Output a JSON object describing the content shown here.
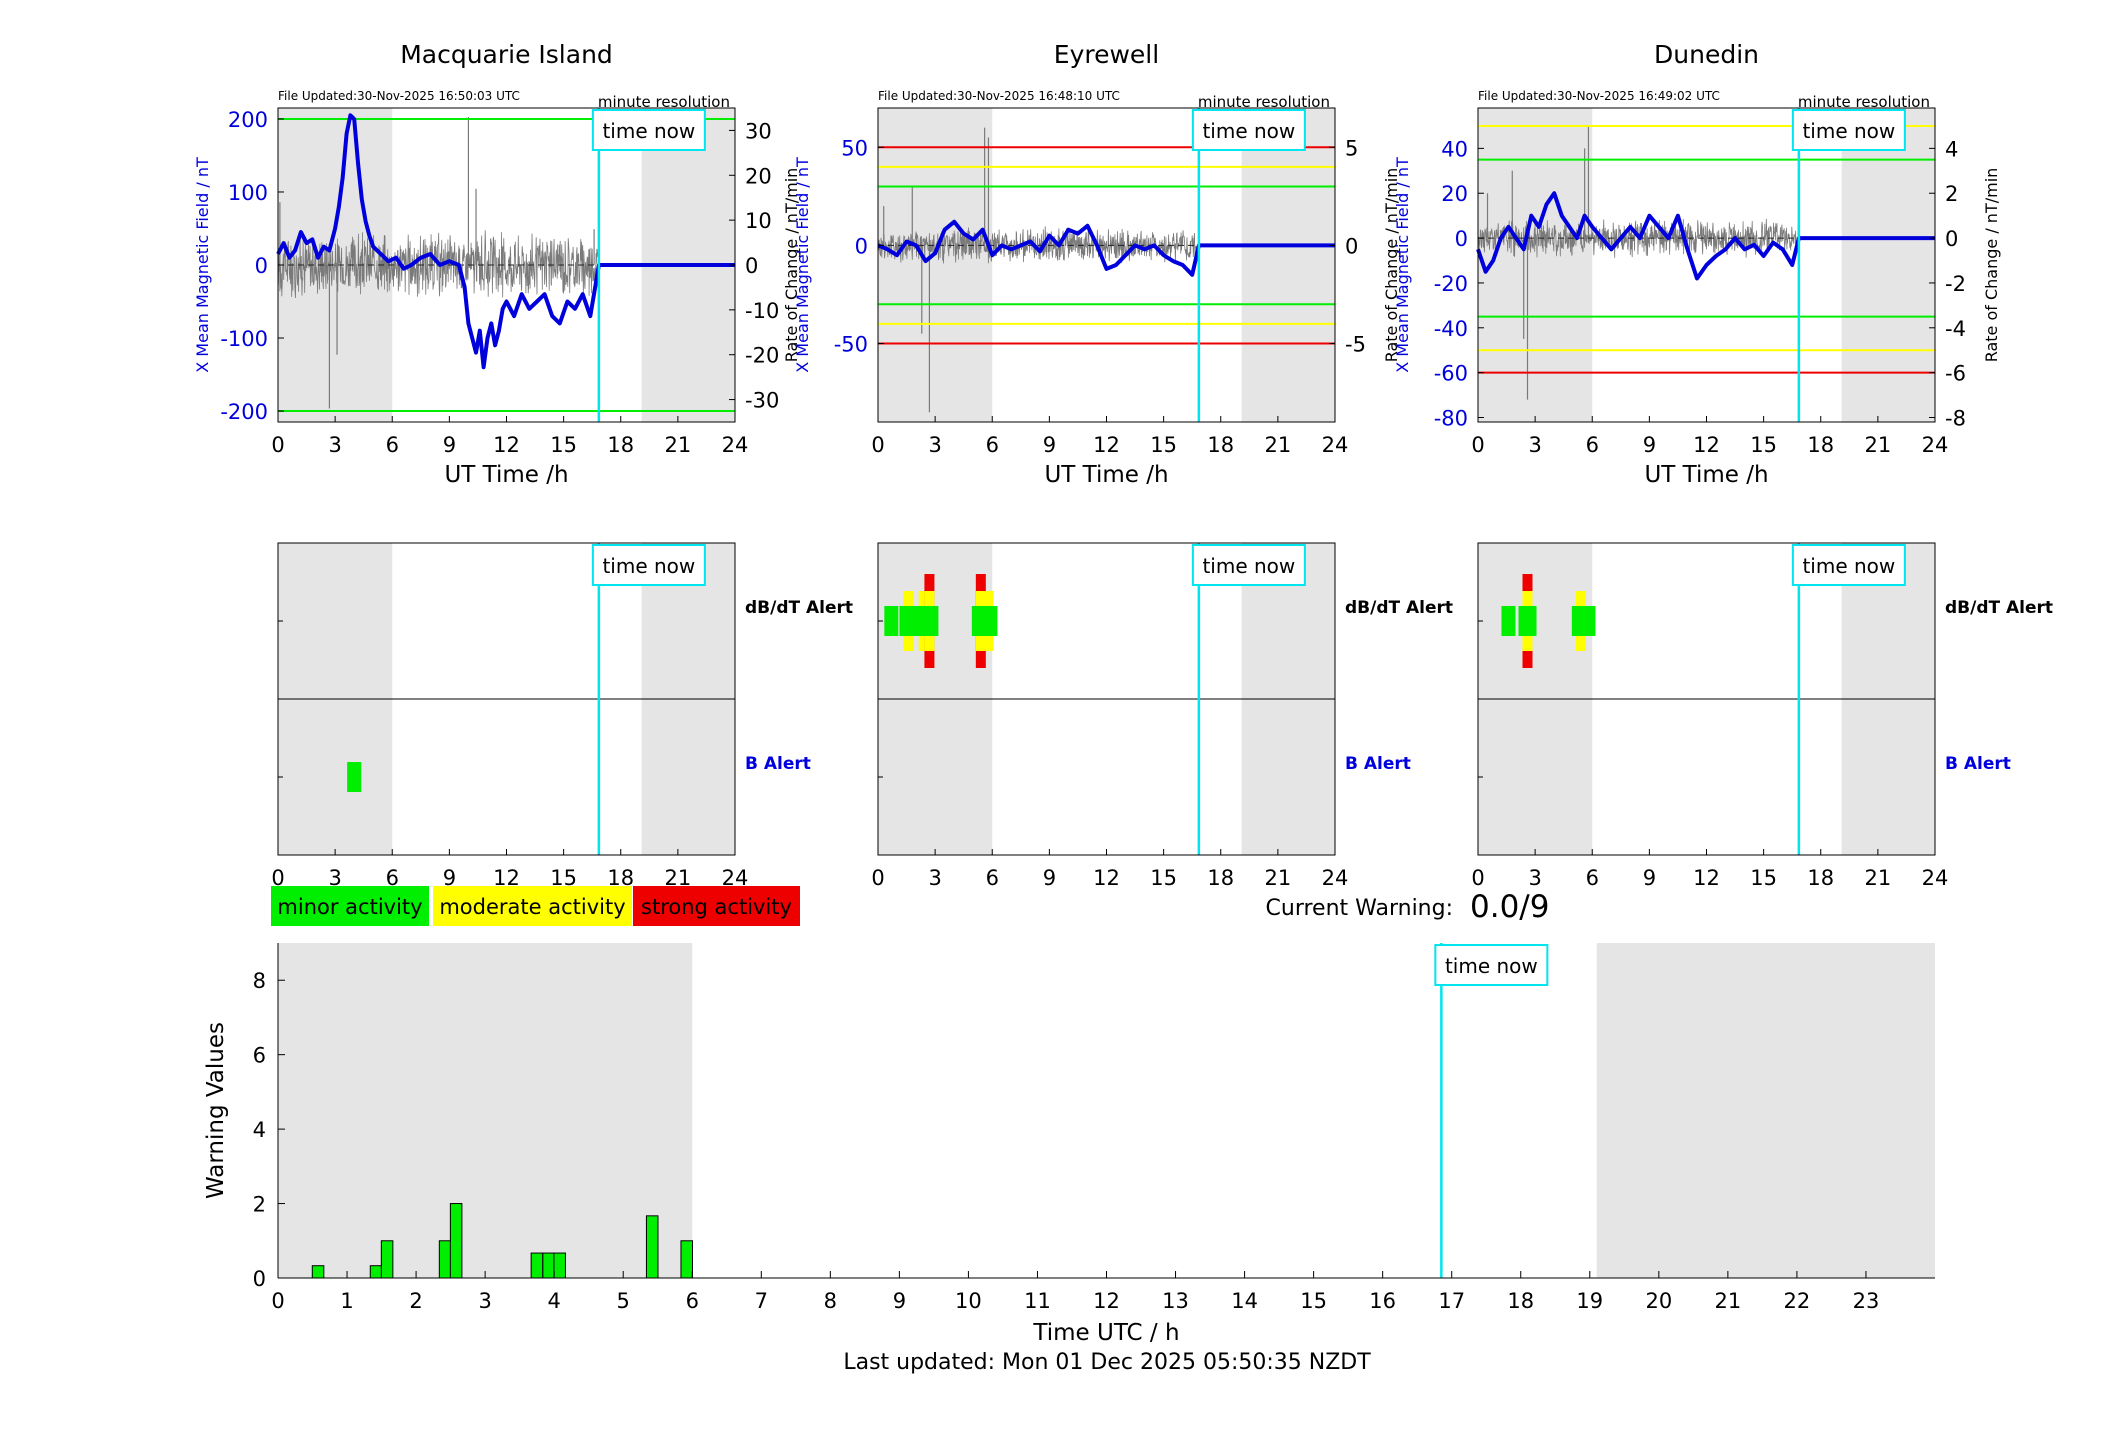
{
  "colors": {
    "blue": "#0000dd",
    "green": "#00ee00",
    "yellow": "#ffff00",
    "red": "#ee0000",
    "cyan": "#00e5ee",
    "shade": "#e5e5e5",
    "grey": "#7a7a7a"
  },
  "labels": {
    "file_prefix": "File Updated:",
    "minute_resolution": "minute resolution",
    "time_now": "time now",
    "ut_time_label": "UT Time /h",
    "left_axis_label": "X Mean Magnetic Field / nT",
    "right_axis_label": "Rate of Change / nT/min",
    "dbdt_alert": "dB/dT Alert",
    "b_alert": "B Alert",
    "current_warning_label": "Current Warning:",
    "current_warning_value": "0.0/9",
    "last_updated": "Last updated: Mon 01 Dec 2025 05:50:35 NZDT"
  },
  "legend": [
    "minor activity",
    "moderate activity",
    "strong activity"
  ],
  "chart_data": [
    {
      "type": "line",
      "title": "Macquarie Island",
      "file_updated": "30-Nov-2025 16:50:03 UTC",
      "xlim": [
        0,
        24
      ],
      "xticks": [
        0,
        3,
        6,
        9,
        12,
        15,
        18,
        21,
        24
      ],
      "ylim_left": [
        -215,
        215
      ],
      "yticks_left": [
        -200,
        -100,
        0,
        100,
        200
      ],
      "ylim_right": [
        -35,
        35
      ],
      "yticks_right": [
        -30,
        -20,
        -10,
        0,
        10,
        20,
        30
      ],
      "night_shading": [
        [
          0,
          6
        ],
        [
          19.1,
          24
        ]
      ],
      "time_now": 16.85,
      "threshold_lines": [
        {
          "value": 200,
          "color": "green"
        },
        {
          "value": -200,
          "color": "green"
        }
      ],
      "series": [
        {
          "axis": "left",
          "x": [
            0,
            0.3,
            0.6,
            0.9,
            1.2,
            1.5,
            1.8,
            2.1,
            2.4,
            2.7,
            3.0,
            3.2,
            3.4,
            3.6,
            3.8,
            4.0,
            4.2,
            4.4,
            4.6,
            4.8,
            5.0,
            5.4,
            5.8,
            6.2,
            6.6,
            7.0,
            7.5,
            8.0,
            8.5,
            9.0,
            9.5,
            9.8,
            10.0,
            10.2,
            10.4,
            10.6,
            10.8,
            11.0,
            11.2,
            11.4,
            11.6,
            11.8,
            12.0,
            12.4,
            12.8,
            13.2,
            13.6,
            14.0,
            14.4,
            14.8,
            15.2,
            15.6,
            16.0,
            16.4,
            16.85,
            24
          ],
          "y": [
            15,
            30,
            10,
            20,
            45,
            30,
            35,
            10,
            25,
            20,
            50,
            80,
            120,
            180,
            205,
            200,
            140,
            90,
            60,
            40,
            25,
            15,
            5,
            10,
            -5,
            0,
            10,
            15,
            0,
            5,
            0,
            -30,
            -80,
            -100,
            -120,
            -90,
            -140,
            -100,
            -80,
            -110,
            -90,
            -60,
            -50,
            -70,
            -40,
            -60,
            -50,
            -40,
            -70,
            -80,
            -50,
            -60,
            -40,
            -70,
            0,
            0
          ]
        },
        {
          "axis": "right",
          "type": "noise",
          "x_range": [
            0,
            16.85
          ],
          "amplitude": 8,
          "spikes": [
            [
              2.7,
              -32
            ],
            [
              3.1,
              -20
            ],
            [
              10.0,
              33
            ],
            [
              10.4,
              17
            ],
            [
              0.1,
              14
            ],
            [
              16.6,
              8
            ]
          ]
        }
      ]
    },
    {
      "type": "line",
      "title": "Eyrewell",
      "file_updated": "30-Nov-2025 16:48:10 UTC",
      "xlim": [
        0,
        24
      ],
      "xticks": [
        0,
        3,
        6,
        9,
        12,
        15,
        18,
        21,
        24
      ],
      "ylim_left": [
        -90,
        70
      ],
      "yticks_left": [
        -50,
        0,
        50
      ],
      "ylim_right": [
        -9,
        7
      ],
      "yticks_right": [
        -5,
        0,
        5
      ],
      "night_shading": [
        [
          0,
          6
        ],
        [
          19.1,
          24
        ]
      ],
      "time_now": 16.85,
      "threshold_lines": [
        {
          "value": 50,
          "color": "red"
        },
        {
          "value": 40,
          "color": "yellow"
        },
        {
          "value": 30,
          "color": "green"
        },
        {
          "value": -30,
          "color": "green"
        },
        {
          "value": -40,
          "color": "yellow"
        },
        {
          "value": -50,
          "color": "red"
        }
      ],
      "series": [
        {
          "axis": "left",
          "x": [
            0,
            0.5,
            1.0,
            1.5,
            2.0,
            2.5,
            3.0,
            3.5,
            4.0,
            4.5,
            5.0,
            5.5,
            6.0,
            6.5,
            7.0,
            7.5,
            8.0,
            8.5,
            9.0,
            9.5,
            10.0,
            10.5,
            11.0,
            11.5,
            12.0,
            12.5,
            13.0,
            13.5,
            14.0,
            14.5,
            15.0,
            15.5,
            16.0,
            16.5,
            16.85,
            24
          ],
          "y": [
            0,
            -2,
            -5,
            2,
            0,
            -8,
            -4,
            8,
            12,
            6,
            3,
            8,
            -5,
            0,
            -2,
            0,
            2,
            -3,
            5,
            0,
            8,
            6,
            10,
            0,
            -12,
            -10,
            -5,
            0,
            -2,
            0,
            -5,
            -8,
            -10,
            -15,
            0,
            0
          ]
        },
        {
          "axis": "right",
          "type": "noise",
          "x_range": [
            0,
            16.85
          ],
          "amplitude": 1.0,
          "spikes": [
            [
              2.7,
              -8.5
            ],
            [
              2.3,
              -4.5
            ],
            [
              5.6,
              6
            ],
            [
              5.8,
              5.5
            ],
            [
              1.8,
              3
            ],
            [
              0.3,
              2
            ]
          ]
        }
      ]
    },
    {
      "type": "line",
      "title": "Dunedin",
      "file_updated": "30-Nov-2025 16:49:02 UTC",
      "xlim": [
        0,
        24
      ],
      "xticks": [
        0,
        3,
        6,
        9,
        12,
        15,
        18,
        21,
        24
      ],
      "ylim_left": [
        -82,
        58
      ],
      "yticks_left": [
        -80,
        -60,
        -40,
        -20,
        0,
        20,
        40
      ],
      "ylim_right": [
        -8.2,
        5.8
      ],
      "yticks_right": [
        -8,
        -6,
        -4,
        -2,
        0,
        2,
        4
      ],
      "night_shading": [
        [
          0,
          6
        ],
        [
          19.1,
          24
        ]
      ],
      "time_now": 16.85,
      "threshold_lines": [
        {
          "value": 50,
          "color": "yellow"
        },
        {
          "value": 35,
          "color": "green"
        },
        {
          "value": -35,
          "color": "green"
        },
        {
          "value": -50,
          "color": "yellow"
        },
        {
          "value": -60,
          "color": "red"
        }
      ],
      "series": [
        {
          "axis": "left",
          "x": [
            0,
            0.4,
            0.8,
            1.2,
            1.6,
            2.0,
            2.4,
            2.8,
            3.2,
            3.6,
            4.0,
            4.4,
            4.8,
            5.2,
            5.6,
            6.0,
            6.5,
            7.0,
            7.5,
            8.0,
            8.5,
            9.0,
            9.5,
            10.0,
            10.5,
            11.0,
            11.5,
            12.0,
            12.5,
            13.0,
            13.5,
            14.0,
            14.5,
            15.0,
            15.5,
            16.0,
            16.5,
            16.85,
            24
          ],
          "y": [
            -5,
            -15,
            -10,
            0,
            5,
            0,
            -5,
            10,
            5,
            15,
            20,
            10,
            5,
            0,
            10,
            5,
            0,
            -5,
            0,
            5,
            0,
            10,
            5,
            0,
            10,
            -5,
            -18,
            -12,
            -8,
            -5,
            0,
            -5,
            -3,
            -8,
            -2,
            -5,
            -12,
            0,
            0
          ]
        },
        {
          "axis": "right",
          "type": "noise",
          "x_range": [
            0,
            16.85
          ],
          "amplitude": 0.9,
          "spikes": [
            [
              2.6,
              -7.2
            ],
            [
              2.4,
              -4.5
            ],
            [
              5.8,
              5
            ],
            [
              5.6,
              4
            ],
            [
              1.8,
              3
            ],
            [
              0.5,
              2
            ]
          ]
        }
      ]
    },
    {
      "type": "heatmap",
      "station": "Macquarie Island",
      "xlim": [
        0,
        24
      ],
      "xticks": [
        0,
        3,
        6,
        9,
        12,
        15,
        18,
        21,
        24
      ],
      "time_now": 16.85,
      "dbdt_alert": [],
      "b_alert": [
        {
          "x": 4.0,
          "level": 1
        }
      ]
    },
    {
      "type": "heatmap",
      "station": "Eyrewell",
      "xlim": [
        0,
        24
      ],
      "xticks": [
        0,
        3,
        6,
        9,
        12,
        15,
        18,
        21,
        24
      ],
      "time_now": 16.85,
      "dbdt_alert": [
        {
          "x": 0.7,
          "level": 1
        },
        {
          "x": 1.6,
          "level": 2
        },
        {
          "x": 2.4,
          "level": 2
        },
        {
          "x": 2.7,
          "level": 3
        },
        {
          "x": 5.4,
          "level": 3
        },
        {
          "x": 5.8,
          "level": 2
        }
      ],
      "b_alert": []
    },
    {
      "type": "heatmap",
      "station": "Dunedin",
      "xlim": [
        0,
        24
      ],
      "xticks": [
        0,
        3,
        6,
        9,
        12,
        15,
        18,
        21,
        24
      ],
      "time_now": 16.85,
      "dbdt_alert": [
        {
          "x": 1.6,
          "level": 1
        },
        {
          "x": 2.6,
          "level": 3
        },
        {
          "x": 5.4,
          "level": 2
        },
        {
          "x": 5.8,
          "level": 1
        }
      ],
      "b_alert": []
    },
    {
      "type": "bar",
      "xlabel": "Time UTC / h",
      "ylabel": "Warning Values",
      "xlim": [
        0,
        24
      ],
      "xticks": [
        0,
        1,
        2,
        3,
        4,
        5,
        6,
        7,
        8,
        9,
        10,
        11,
        12,
        13,
        14,
        15,
        16,
        17,
        18,
        19,
        20,
        21,
        22,
        23
      ],
      "ylim": [
        0,
        9
      ],
      "yticks": [
        0,
        2,
        4,
        6,
        8
      ],
      "bar_width": 0.167,
      "night_shading": [
        [
          0,
          6
        ],
        [
          19.1,
          24
        ]
      ],
      "time_now": 16.85,
      "x": [
        0.58,
        1.42,
        1.58,
        2.42,
        2.58,
        3.75,
        3.92,
        4.08,
        5.42,
        5.92
      ],
      "values": [
        0.33,
        0.33,
        1.0,
        1.0,
        2.0,
        0.67,
        0.67,
        0.67,
        1.67,
        1.0
      ]
    }
  ]
}
